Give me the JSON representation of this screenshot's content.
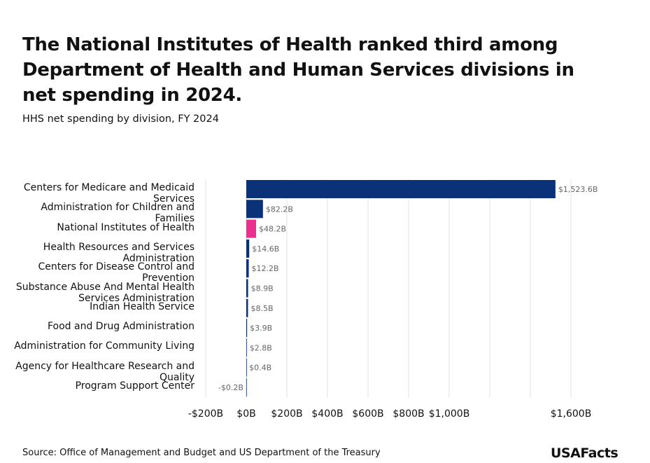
{
  "title": "The National Institutes of Health ranked third among Department of Health and Human Services divisions in net spending in 2024.",
  "subtitle": "HHS net spending by division, FY 2024",
  "source": "Source: Office of Management and Budget and US Department of the Treasury",
  "logo": "USAFacts",
  "chart_data": {
    "type": "hbar",
    "categories": [
      "Centers for Medicare and Medicaid Services",
      "Administration for Children and Families",
      "National Institutes of Health",
      "Health Resources and Services Administration",
      "Centers for Disease Control and Prevention",
      "Substance Abuse And Mental Health Services Administration",
      "Indian Health Service",
      "Food and Drug Administration",
      "Administration for Community Living",
      "Agency for Healthcare Research and Quality",
      "Program Support Center"
    ],
    "values": [
      1523.6,
      82.2,
      48.2,
      14.6,
      12.2,
      8.9,
      8.5,
      3.9,
      2.8,
      0.4,
      -0.2
    ],
    "value_labels": [
      "$1,523.6B",
      "$82.2B",
      "$48.2B",
      "$14.6B",
      "$12.2B",
      "$8.9B",
      "$8.5B",
      "$3.9B",
      "$2.8B",
      "$0.4B",
      "-$0.2B"
    ],
    "colors": [
      "#0b3178",
      "#0b3178",
      "#e8318f",
      "#0b3178",
      "#0b3178",
      "#0b3178",
      "#0b3178",
      "#0b3178",
      "#0b3178",
      "#0b3178",
      "#0b3178"
    ],
    "xlim": [
      -200,
      1600
    ],
    "xticks": [
      {
        "value": -200,
        "label": "-$200B"
      },
      {
        "value": 0,
        "label": "$0B"
      },
      {
        "value": 200,
        "label": "$200B"
      },
      {
        "value": 400,
        "label": "$400B"
      },
      {
        "value": 600,
        "label": "$600B"
      },
      {
        "value": 800,
        "label": "$800B"
      },
      {
        "value": 1000,
        "label": "$1,000B"
      },
      {
        "value": 1600,
        "label": "$1,600B"
      }
    ],
    "xgrid": [
      -200,
      0,
      200,
      400,
      600,
      800,
      1000,
      1200,
      1400,
      1600
    ]
  }
}
